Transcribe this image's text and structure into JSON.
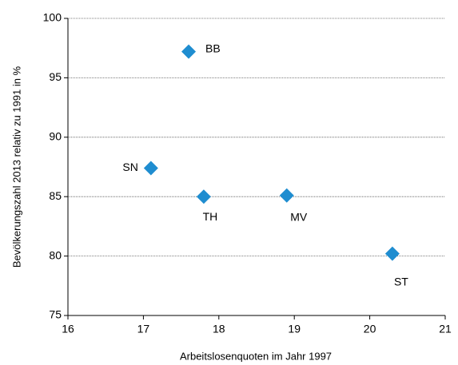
{
  "chart_data": {
    "type": "scatter",
    "x_label": "Arbeitslosenquoten im Jahr  1997",
    "y_label": "Bevölkerungszahl 2013 relativ zu 1991 in %",
    "labels": [
      "BB",
      "SN",
      "TH",
      "MV",
      "ST"
    ],
    "x": [
      17.6,
      17.1,
      17.8,
      18.9,
      20.3
    ],
    "values": [
      97.2,
      87.4,
      85.0,
      85.1,
      80.2
    ],
    "color": "#1f8dd0",
    "xlim": [
      16,
      21
    ],
    "xticks": [
      16,
      17,
      18,
      19,
      20,
      21
    ],
    "ylim": [
      75,
      100
    ],
    "yticks": [
      75,
      80,
      85,
      90,
      95,
      100
    ],
    "grid": true
  }
}
